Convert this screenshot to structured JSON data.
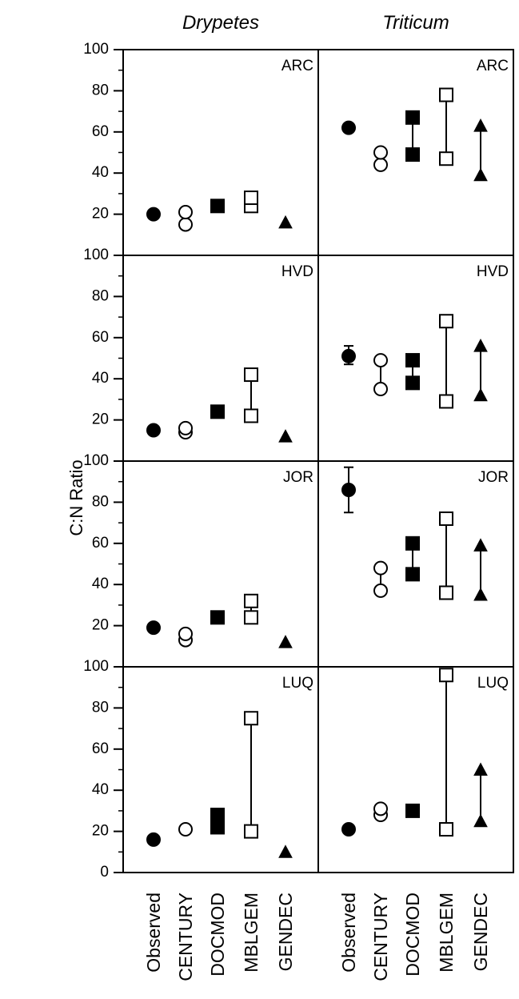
{
  "chart_data": {
    "type": "scatter",
    "columns": [
      "Drypetes",
      "Triticum"
    ],
    "panels": [
      "ARC",
      "HVD",
      "JOR",
      "LUQ"
    ],
    "categories": [
      "Observed",
      "CENTURY",
      "DOCMOD",
      "MBLGEM",
      "GENDEC"
    ],
    "ylabel": "C:N Ratio",
    "ylim": [
      0,
      100
    ],
    "yticks": [
      0,
      20,
      40,
      60,
      80,
      100
    ],
    "marker_styles": {
      "Observed": "filled-circle",
      "CENTURY": "open-circle",
      "DOCMOD": "filled-square",
      "MBLGEM": "open-square",
      "GENDEC": "filled-triangle"
    },
    "grid": false,
    "data": {
      "Drypetes": {
        "ARC": {
          "Observed": {
            "values": [
              20
            ]
          },
          "CENTURY": {
            "values": [
              15,
              21
            ]
          },
          "DOCMOD": {
            "values": [
              24
            ]
          },
          "MBLGEM": {
            "values": [
              24,
              28
            ]
          },
          "GENDEC": {
            "values": [
              16
            ]
          }
        },
        "HVD": {
          "Observed": {
            "values": [
              15
            ]
          },
          "CENTURY": {
            "values": [
              14,
              16
            ]
          },
          "DOCMOD": {
            "values": [
              24
            ]
          },
          "MBLGEM": {
            "values": [
              22,
              42
            ]
          },
          "GENDEC": {
            "values": [
              12
            ]
          }
        },
        "JOR": {
          "Observed": {
            "values": [
              19
            ]
          },
          "CENTURY": {
            "values": [
              13,
              16
            ]
          },
          "DOCMOD": {
            "values": [
              24
            ]
          },
          "MBLGEM": {
            "values": [
              24,
              32
            ]
          },
          "GENDEC": {
            "values": [
              12
            ]
          }
        },
        "LUQ": {
          "Observed": {
            "values": [
              16
            ]
          },
          "CENTURY": {
            "values": [
              21
            ]
          },
          "DOCMOD": {
            "values": [
              22,
              28
            ]
          },
          "MBLGEM": {
            "values": [
              20,
              75
            ]
          },
          "GENDEC": {
            "values": [
              10
            ]
          }
        }
      },
      "Triticum": {
        "ARC": {
          "Observed": {
            "values": [
              62
            ],
            "error": [
              61,
              64
            ]
          },
          "CENTURY": {
            "values": [
              44,
              50
            ]
          },
          "DOCMOD": {
            "values": [
              49,
              67
            ]
          },
          "MBLGEM": {
            "values": [
              47,
              78
            ]
          },
          "GENDEC": {
            "values": [
              39,
              63
            ]
          }
        },
        "HVD": {
          "Observed": {
            "values": [
              51
            ],
            "error": [
              47,
              56
            ]
          },
          "CENTURY": {
            "values": [
              35,
              49
            ]
          },
          "DOCMOD": {
            "values": [
              38,
              49
            ]
          },
          "MBLGEM": {
            "values": [
              29,
              68
            ]
          },
          "GENDEC": {
            "values": [
              32,
              56
            ]
          }
        },
        "JOR": {
          "Observed": {
            "values": [
              86
            ],
            "error": [
              75,
              97
            ]
          },
          "CENTURY": {
            "values": [
              37,
              48
            ]
          },
          "DOCMOD": {
            "values": [
              45,
              60
            ]
          },
          "MBLGEM": {
            "values": [
              36,
              72
            ]
          },
          "GENDEC": {
            "values": [
              35,
              59
            ]
          }
        },
        "LUQ": {
          "Observed": {
            "values": [
              21
            ]
          },
          "CENTURY": {
            "values": [
              28,
              31
            ]
          },
          "DOCMOD": {
            "values": [
              30
            ]
          },
          "MBLGEM": {
            "values": [
              21,
              96
            ]
          },
          "GENDEC": {
            "values": [
              25,
              50
            ]
          }
        }
      }
    }
  }
}
